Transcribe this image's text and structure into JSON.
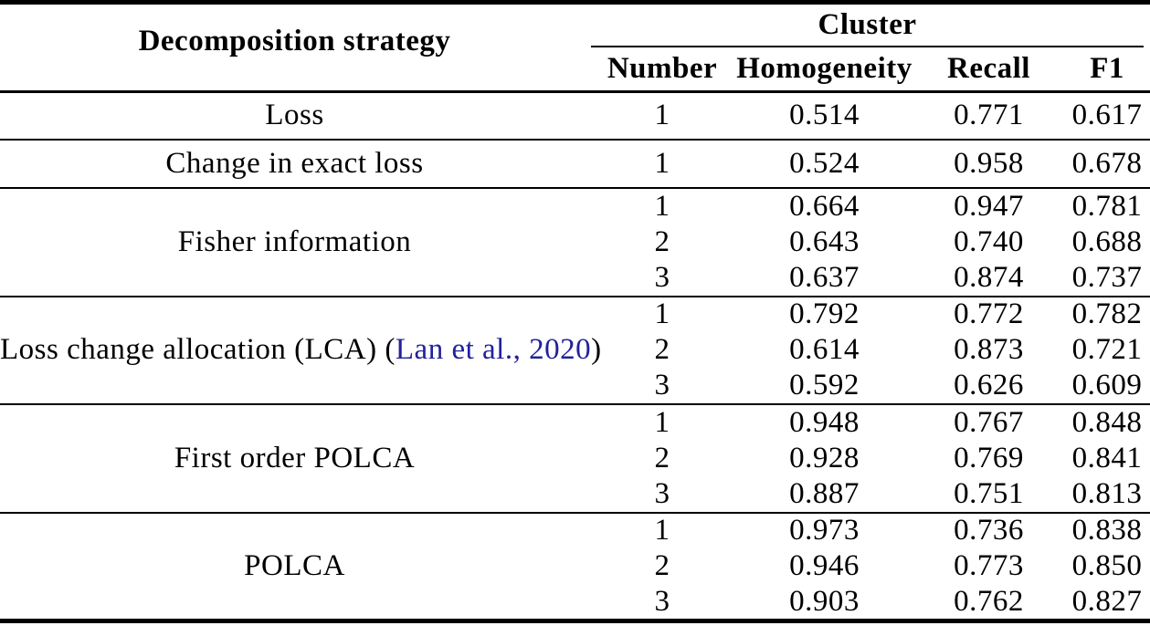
{
  "table": {
    "header": {
      "strategy_col": "Decomposition strategy",
      "group_col": "Cluster",
      "sub_cols": [
        "Number",
        "Homogeneity",
        "Recall",
        "F1"
      ]
    },
    "sections": [
      {
        "strategy": "Loss",
        "rows": [
          [
            "1",
            "0.514",
            "0.771",
            "0.617"
          ]
        ]
      },
      {
        "strategy": "Change in exact loss",
        "rows": [
          [
            "1",
            "0.524",
            "0.958",
            "0.678"
          ]
        ]
      },
      {
        "strategy": "Fisher information",
        "rows": [
          [
            "1",
            "0.664",
            "0.947",
            "0.781"
          ],
          [
            "2",
            "0.643",
            "0.740",
            "0.688"
          ],
          [
            "3",
            "0.637",
            "0.874",
            "0.737"
          ]
        ]
      },
      {
        "strategy": "Loss change allocation (LCA)",
        "citation": "Lan et al., 2020",
        "rows": [
          [
            "1",
            "0.792",
            "0.772",
            "0.782"
          ],
          [
            "2",
            "0.614",
            "0.873",
            "0.721"
          ],
          [
            "3",
            "0.592",
            "0.626",
            "0.609"
          ]
        ]
      },
      {
        "strategy": "First order POLCA",
        "rows": [
          [
            "1",
            "0.948",
            "0.767",
            "0.848"
          ],
          [
            "2",
            "0.928",
            "0.769",
            "0.841"
          ],
          [
            "3",
            "0.887",
            "0.751",
            "0.813"
          ]
        ]
      },
      {
        "strategy": "POLCA",
        "rows": [
          [
            "1",
            "0.973",
            "0.736",
            "0.838"
          ],
          [
            "2",
            "0.946",
            "0.773",
            "0.850"
          ],
          [
            "3",
            "0.903",
            "0.762",
            "0.827"
          ]
        ]
      }
    ]
  },
  "colors": {
    "text": "#000000",
    "rule": "#000000",
    "citation_link": "#21219c"
  }
}
